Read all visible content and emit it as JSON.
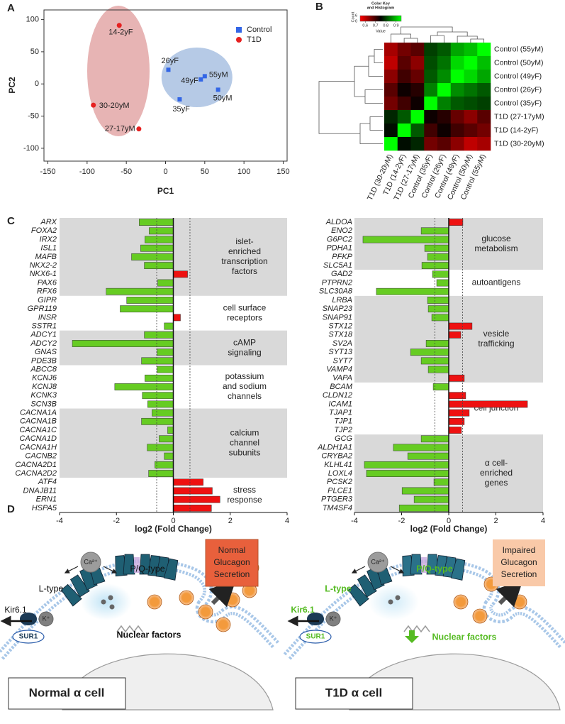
{
  "panel_labels": [
    "A",
    "B",
    "C",
    "D"
  ],
  "chart_data": [
    {
      "type": "scatter",
      "xlabel": "PC1",
      "ylabel": "PC2",
      "xlim": [
        -155,
        155
      ],
      "ylim": [
        -120,
        115
      ],
      "xticks": [
        -150,
        -100,
        -50,
        0,
        50,
        100,
        150
      ],
      "yticks": [
        -100,
        -50,
        0,
        50,
        100
      ],
      "legend": "upper right",
      "series": [
        {
          "name": "Control",
          "color": "#3366e6",
          "marker": "square",
          "ellipse_color": "#a9c1e2",
          "x": [
            3.6,
            45,
            50,
            67,
            18
          ],
          "y": [
            22,
            7,
            12,
            -9,
            -24
          ],
          "labels": [
            "26yF",
            "49yF",
            "55yM",
            "50yM",
            "35yF"
          ]
        },
        {
          "name": "T1D",
          "color": "#e62020",
          "marker": "circle",
          "ellipse_color": "#e3a7a7",
          "x": [
            -59,
            -92,
            -34
          ],
          "y": [
            91,
            -33,
            -70
          ],
          "labels": [
            "14-2yF",
            "30-20yM",
            "27-17yM"
          ]
        }
      ]
    },
    {
      "type": "heatmap",
      "key_title": [
        "Color Key",
        "and Histogram"
      ],
      "key_xlabel": "Value",
      "key_ylabel": "Count",
      "key_count_ticks": [
        0,
        6
      ],
      "key_ticks": [
        0.6,
        0.7,
        0.8,
        0.9
      ],
      "zlim": [
        0.55,
        0.95
      ],
      "colors": [
        "#ff0000",
        "#000000",
        "#00ff00"
      ],
      "rows": [
        "Control (55yM)",
        "Control (50yM)",
        "Control (49yF)",
        "Control (26yF)",
        "Control (35yF)",
        "T1D (27-17yM)",
        "T1D (14-2yF)",
        "T1D (30-20yM)"
      ],
      "columns": [
        "T1D (30-20yM)",
        "T1D (14-2yF)",
        "T1D (27-17yM)",
        "Control (35yF)",
        "Control (26yF)",
        "Control (49yF)",
        "Control (50yM)",
        "Control (55yM)"
      ],
      "values": [
        [
          0.62,
          0.66,
          0.68,
          0.8,
          0.82,
          0.88,
          0.9,
          1.0
        ],
        [
          0.6,
          0.68,
          0.64,
          0.81,
          0.84,
          0.92,
          1.0,
          0.9
        ],
        [
          0.64,
          0.7,
          0.67,
          0.82,
          0.86,
          1.0,
          0.92,
          0.88
        ],
        [
          0.68,
          0.74,
          0.72,
          0.85,
          1.0,
          0.86,
          0.84,
          0.82
        ],
        [
          0.66,
          0.7,
          0.74,
          1.0,
          0.85,
          0.82,
          0.81,
          0.8
        ],
        [
          0.78,
          0.82,
          1.0,
          0.74,
          0.72,
          0.67,
          0.64,
          0.68
        ],
        [
          0.76,
          1.0,
          0.82,
          0.7,
          0.74,
          0.7,
          0.68,
          0.66
        ],
        [
          1.0,
          0.76,
          0.78,
          0.66,
          0.68,
          0.64,
          0.6,
          0.62
        ]
      ]
    },
    {
      "type": "bar",
      "orientation": "horizontal",
      "xlabel": "log2 (Fold Change)",
      "xlim": [
        -4,
        4
      ],
      "xticks": [
        -4,
        -2,
        0,
        2,
        4
      ],
      "threshold_lines": [
        -0.585,
        0.585
      ],
      "negative_color": "#66cc22",
      "positive_color": "#ee1111",
      "shade_color": "#d9d9d9",
      "groups": [
        {
          "label": [
            "islet-",
            "enriched",
            "transcription",
            "factors"
          ],
          "shaded": true,
          "categories": [
            "ARX",
            "FOXA2",
            "IRX2",
            "ISL1",
            "MAFB",
            "NKX2-2",
            "NKX6-1",
            "PAX6",
            "RFX6"
          ],
          "values": [
            -1.2,
            -0.85,
            -1.0,
            -1.15,
            -1.47,
            -1.02,
            0.5,
            -0.55,
            -2.36
          ]
        },
        {
          "label": [
            "cell surface",
            "receptors"
          ],
          "shaded": false,
          "categories": [
            "GIPR",
            "GPR119",
            "INSR",
            "SSTR1"
          ],
          "values": [
            -1.64,
            -1.87,
            0.25,
            -0.32
          ]
        },
        {
          "label": [
            "cAMP",
            "signaling"
          ],
          "shaded": true,
          "categories": [
            "ADCY1",
            "ADCY2",
            "GNAS",
            "PDE3B"
          ],
          "values": [
            -1.02,
            -3.55,
            -0.57,
            -1.12
          ]
        },
        {
          "label": [
            "potassium",
            "and sodium",
            "channels"
          ],
          "shaded": false,
          "categories": [
            "ABCC8",
            "KCNJ6",
            "KCNJ8",
            "KCNK3",
            "SCN3B"
          ],
          "values": [
            -0.57,
            -1.0,
            -2.06,
            -1.09,
            -0.9
          ]
        },
        {
          "label": [
            "calcium",
            "channel",
            "subunits"
          ],
          "shaded": true,
          "categories": [
            "CACNA1A",
            "CACNA1B",
            "CACNA1C",
            "CACNA1D",
            "CACNA1H",
            "CACNB2",
            "CACNA2D1",
            "CACNA2D2"
          ],
          "values": [
            -0.75,
            -1.12,
            -0.2,
            -0.5,
            -0.92,
            -0.32,
            -0.65,
            -0.87
          ]
        },
        {
          "label": [
            "stress",
            "response"
          ],
          "shaded": false,
          "categories": [
            "ATF4",
            "DNAJB11",
            "ERN1",
            "HSPA5"
          ],
          "values": [
            1.05,
            1.37,
            1.64,
            1.34
          ]
        }
      ]
    },
    {
      "type": "bar",
      "orientation": "horizontal",
      "xlabel": "log2 (Fold Change)",
      "xlim": [
        -4,
        4
      ],
      "xticks": [
        -4,
        -2,
        0,
        2,
        4
      ],
      "threshold_lines": [
        -0.585,
        0.585
      ],
      "negative_color": "#66cc22",
      "positive_color": "#ee1111",
      "shade_color": "#d9d9d9",
      "groups": [
        {
          "label": [
            "glucose",
            "metabolism"
          ],
          "shaded": true,
          "categories": [
            "ALDOA",
            "ENO2",
            "G6PC2",
            "PDHA1",
            "PFKP",
            "SLC5A1"
          ],
          "values": [
            0.6,
            -1.17,
            -3.64,
            -1.02,
            -0.9,
            -1.14
          ]
        },
        {
          "label": [
            "autoantigens"
          ],
          "shaded": false,
          "categories": [
            "GAD2",
            "PTPRN2",
            "SLC30A8"
          ],
          "values": [
            -0.69,
            -0.51,
            -3.07
          ]
        },
        {
          "label": [
            "vesicle",
            "trafficking"
          ],
          "shaded": true,
          "categories": [
            "LRBA",
            "SNAP23",
            "SNAP91",
            "STX12",
            "STX18",
            "SV2A",
            "SYT13",
            "SYT7",
            "VAMP4",
            "VAPA"
          ],
          "values": [
            -0.9,
            -0.87,
            -0.72,
            0.99,
            0.51,
            -0.96,
            -1.62,
            -1.17,
            -0.87,
            0.66
          ]
        },
        {
          "label": [
            "cell junction"
          ],
          "shaded": false,
          "categories": [
            "BCAM",
            "CLDN12",
            "ICAM1",
            "TJAP1",
            "TJP1",
            "TJP2"
          ],
          "values": [
            -0.66,
            0.72,
            3.34,
            0.87,
            0.66,
            0.54
          ]
        },
        {
          "label": [
            "α cell-",
            "enriched",
            "genes"
          ],
          "shaded": true,
          "categories": [
            "GCG",
            "ALDH1A1",
            "CRYBA2",
            "KLHL41",
            "LOXL4",
            "PCSK2",
            "PLCE1",
            "PTGER3",
            "TM4SF4"
          ],
          "values": [
            -1.17,
            -2.35,
            -1.74,
            -3.58,
            -3.49,
            -0.63,
            -1.98,
            -1.47,
            -2.1
          ]
        }
      ]
    }
  ],
  "panel_d": {
    "cells": [
      {
        "ion": "Ca²⁺",
        "l_type": "L-type",
        "pq_type": "P/Q-type",
        "secretion": [
          "Normal",
          "Glucagon",
          "Secretion"
        ],
        "kir": "Kir6.1",
        "k": "K⁺",
        "sur": "SUR1",
        "nuclear": "Nuclear factors",
        "title": "Normal α cell",
        "label_color": "#111111",
        "box_color": "#e8603c"
      },
      {
        "ion": "Ca²⁺",
        "l_type": "L-type",
        "pq_type": "P/Q-type",
        "secretion": [
          "Impaired",
          "Glucagon",
          "Secretion"
        ],
        "kir": "Kir6.1",
        "k": "K⁺",
        "sur": "SUR1",
        "nuclear": "Nuclear factors",
        "title": "T1D α cell",
        "label_color": "#55bb22",
        "box_color": "#f9c9a8"
      }
    ]
  }
}
